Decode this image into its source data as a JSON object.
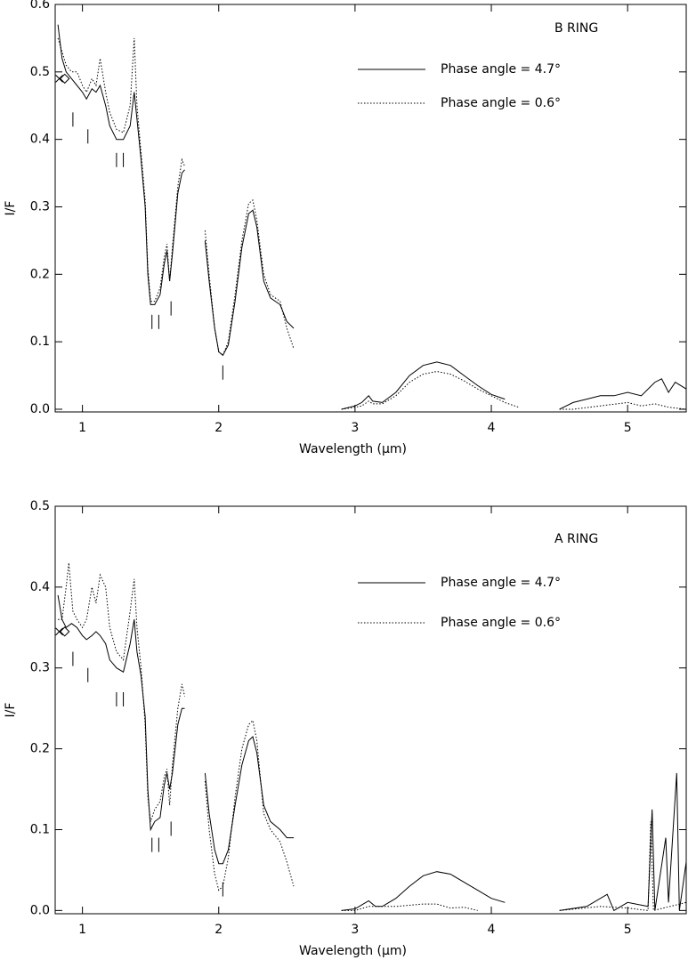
{
  "chart_data": [
    {
      "type": "line",
      "annotation": "B RING",
      "xlabel": "Wavelength (μm)",
      "ylabel": "I/F",
      "xlim": [
        0.8,
        5.43
      ],
      "ylim": [
        -0.004,
        0.6
      ],
      "xticks": [
        1,
        2,
        3,
        4,
        5
      ],
      "yticks": [
        {
          "value": 0,
          "label": "0.0"
        },
        0.1,
        0.2,
        0.3,
        0.4,
        0.5,
        0.6
      ],
      "series": [
        {
          "name": "Phase angle =  4.7°",
          "color": "#000000",
          "style": "solid",
          "x": [
            0.82,
            0.85,
            0.88,
            0.92,
            0.96,
            1.0,
            1.03,
            1.07,
            1.1,
            1.13,
            1.17,
            1.2,
            1.25,
            1.3,
            1.35,
            1.38,
            1.4,
            1.43,
            1.46,
            1.48,
            1.5,
            1.53,
            1.57,
            1.6,
            1.62,
            1.64,
            1.66,
            1.7,
            1.73,
            1.75,
            null,
            1.9,
            1.93,
            1.97,
            2.0,
            2.03,
            2.07,
            2.12,
            2.17,
            2.22,
            2.25,
            2.28,
            2.33,
            2.38,
            2.45,
            2.5,
            2.55,
            null,
            2.9,
            3.0,
            3.05,
            3.1,
            3.13,
            3.2,
            3.3,
            3.4,
            3.5,
            3.6,
            3.7,
            3.8,
            3.9,
            4.0,
            4.1,
            null,
            4.5,
            4.6,
            4.7,
            4.8,
            4.9,
            5.0,
            5.1,
            5.2,
            5.25,
            5.3,
            5.35,
            5.43
          ],
          "values": [
            0.57,
            0.52,
            0.5,
            0.49,
            0.48,
            0.47,
            0.46,
            0.475,
            0.47,
            0.48,
            0.45,
            0.42,
            0.4,
            0.4,
            0.42,
            0.47,
            0.43,
            0.37,
            0.3,
            0.2,
            0.155,
            0.155,
            0.17,
            0.215,
            0.235,
            0.19,
            0.23,
            0.32,
            0.35,
            0.355,
            null,
            0.25,
            0.19,
            0.12,
            0.085,
            0.08,
            0.095,
            0.16,
            0.24,
            0.29,
            0.295,
            0.27,
            0.19,
            0.165,
            0.155,
            0.13,
            0.12,
            null,
            0.0,
            0.005,
            0.01,
            0.02,
            0.012,
            0.01,
            0.025,
            0.05,
            0.065,
            0.07,
            0.065,
            0.05,
            0.035,
            0.022,
            0.015,
            null,
            0.0,
            0.01,
            0.015,
            0.02,
            0.02,
            0.025,
            0.02,
            0.04,
            0.045,
            0.025,
            0.04,
            0.03
          ]
        },
        {
          "name": "Phase angle =  0.6°",
          "color": "#000000",
          "style": "dotted",
          "x": [
            0.82,
            0.85,
            0.88,
            0.92,
            0.96,
            1.0,
            1.03,
            1.07,
            1.1,
            1.13,
            1.17,
            1.2,
            1.25,
            1.3,
            1.35,
            1.38,
            1.4,
            1.43,
            1.46,
            1.48,
            1.5,
            1.53,
            1.57,
            1.6,
            1.62,
            1.64,
            1.66,
            1.7,
            1.73,
            1.75,
            null,
            1.9,
            1.93,
            1.97,
            2.0,
            2.03,
            2.07,
            2.12,
            2.17,
            2.22,
            2.25,
            2.28,
            2.33,
            2.38,
            2.45,
            2.5,
            2.55,
            null,
            2.9,
            3.0,
            3.05,
            3.1,
            3.13,
            3.2,
            3.3,
            3.4,
            3.5,
            3.6,
            3.7,
            3.8,
            3.9,
            4.0,
            4.1,
            4.2,
            null,
            4.5,
            4.6,
            4.8,
            5.0,
            5.1,
            5.2,
            5.3,
            5.43
          ],
          "values": [
            0.55,
            0.53,
            0.51,
            0.5,
            0.5,
            0.48,
            0.47,
            0.49,
            0.48,
            0.52,
            0.47,
            0.44,
            0.415,
            0.41,
            0.45,
            0.55,
            0.45,
            0.38,
            0.31,
            0.21,
            0.16,
            0.16,
            0.18,
            0.225,
            0.245,
            0.19,
            0.24,
            0.33,
            0.37,
            0.36,
            null,
            0.265,
            0.2,
            0.12,
            0.085,
            0.08,
            0.1,
            0.17,
            0.25,
            0.305,
            0.31,
            0.28,
            0.2,
            0.17,
            0.16,
            0.12,
            0.09,
            null,
            0.0,
            0.003,
            0.005,
            0.012,
            0.008,
            0.008,
            0.02,
            0.04,
            0.052,
            0.056,
            0.052,
            0.042,
            0.03,
            0.02,
            0.01,
            0.003,
            null,
            0.0,
            0.0,
            0.005,
            0.01,
            0.005,
            0.008,
            0.003,
            0.0
          ]
        }
      ],
      "band_marks": [
        {
          "x": 0.93,
          "y": 0.44
        },
        {
          "x": 1.04,
          "y": 0.415
        },
        {
          "x": 1.25,
          "y": 0.38
        },
        {
          "x": 1.3,
          "y": 0.38
        },
        {
          "x": 1.51,
          "y": 0.14
        },
        {
          "x": 1.56,
          "y": 0.14
        },
        {
          "x": 1.65,
          "y": 0.16
        },
        {
          "x": 2.03,
          "y": 0.065
        }
      ],
      "reference_points": [
        {
          "x": 0.83,
          "y": 0.49,
          "marker": "cross"
        },
        {
          "x": 0.87,
          "y": 0.49,
          "marker": "diamond"
        }
      ]
    },
    {
      "type": "line",
      "annotation": "A RING",
      "xlabel": "Wavelength (μm)",
      "ylabel": "I/F",
      "xlim": [
        0.8,
        5.43
      ],
      "ylim": [
        -0.004,
        0.5
      ],
      "xticks": [
        1,
        2,
        3,
        4,
        5
      ],
      "yticks": [
        {
          "value": 0,
          "label": "0.0"
        },
        0.1,
        0.2,
        0.3,
        0.4,
        0.5
      ],
      "series": [
        {
          "name": "Phase angle =  4.7°",
          "color": "#000000",
          "style": "solid",
          "x": [
            0.82,
            0.85,
            0.88,
            0.92,
            0.96,
            1.0,
            1.03,
            1.07,
            1.1,
            1.13,
            1.17,
            1.2,
            1.25,
            1.3,
            1.35,
            1.38,
            1.4,
            1.43,
            1.46,
            1.48,
            1.5,
            1.53,
            1.57,
            1.6,
            1.62,
            1.64,
            1.66,
            1.7,
            1.73,
            1.75,
            null,
            1.9,
            1.93,
            1.97,
            2.0,
            2.03,
            2.07,
            2.12,
            2.17,
            2.22,
            2.25,
            2.28,
            2.33,
            2.38,
            2.45,
            2.5,
            2.55,
            null,
            2.9,
            3.0,
            3.1,
            3.15,
            3.2,
            3.3,
            3.4,
            3.5,
            3.6,
            3.7,
            3.8,
            3.9,
            4.0,
            4.1,
            null,
            4.5,
            4.7,
            4.85,
            4.9,
            5.0,
            5.15,
            5.18,
            5.2,
            5.28,
            5.3,
            5.36,
            5.38,
            5.43
          ],
          "values": [
            0.39,
            0.36,
            0.35,
            0.355,
            0.35,
            0.34,
            0.335,
            0.34,
            0.345,
            0.34,
            0.33,
            0.31,
            0.3,
            0.295,
            0.33,
            0.36,
            0.32,
            0.29,
            0.24,
            0.15,
            0.1,
            0.11,
            0.115,
            0.155,
            0.17,
            0.15,
            0.17,
            0.23,
            0.25,
            0.25,
            null,
            0.17,
            0.12,
            0.075,
            0.058,
            0.058,
            0.075,
            0.13,
            0.18,
            0.21,
            0.215,
            0.195,
            0.13,
            0.11,
            0.1,
            0.09,
            0.09,
            null,
            0.0,
            0.002,
            0.012,
            0.005,
            0.005,
            0.015,
            0.03,
            0.043,
            0.048,
            0.045,
            0.035,
            0.025,
            0.015,
            0.01,
            null,
            0.0,
            0.005,
            0.02,
            0.0,
            0.01,
            0.005,
            0.125,
            0.0,
            0.09,
            0.01,
            0.17,
            0.0,
            0.06
          ]
        },
        {
          "name": "Phase angle =  0.6°",
          "color": "#000000",
          "style": "dotted",
          "x": [
            0.82,
            0.85,
            0.88,
            0.9,
            0.93,
            0.96,
            1.0,
            1.03,
            1.07,
            1.1,
            1.13,
            1.17,
            1.2,
            1.25,
            1.3,
            1.35,
            1.38,
            1.4,
            1.43,
            1.46,
            1.48,
            1.5,
            1.53,
            1.57,
            1.6,
            1.62,
            1.64,
            1.66,
            1.7,
            1.73,
            1.75,
            null,
            1.9,
            1.93,
            1.97,
            2.0,
            2.03,
            2.07,
            2.12,
            2.17,
            2.22,
            2.25,
            2.28,
            2.33,
            2.38,
            2.45,
            2.5,
            2.55,
            null,
            2.9,
            3.0,
            3.1,
            3.3,
            3.5,
            3.6,
            3.7,
            3.8,
            3.9,
            null,
            4.5,
            4.8,
            5.0,
            5.15,
            5.17,
            5.19,
            5.43
          ],
          "values": [
            0.36,
            0.36,
            0.4,
            0.43,
            0.37,
            0.36,
            0.35,
            0.36,
            0.4,
            0.38,
            0.415,
            0.4,
            0.35,
            0.32,
            0.31,
            0.37,
            0.41,
            0.35,
            0.3,
            0.23,
            0.14,
            0.11,
            0.125,
            0.135,
            0.165,
            0.175,
            0.13,
            0.18,
            0.25,
            0.28,
            0.265,
            null,
            0.16,
            0.1,
            0.045,
            0.025,
            0.03,
            0.065,
            0.14,
            0.2,
            0.23,
            0.235,
            0.21,
            0.12,
            0.1,
            0.085,
            0.06,
            0.03,
            null,
            0.0,
            0.0,
            0.005,
            0.005,
            0.008,
            0.008,
            0.003,
            0.004,
            0.0,
            null,
            0.0,
            0.005,
            0.003,
            0.0,
            0.11,
            0.0,
            0.01
          ]
        }
      ],
      "band_marks": [
        {
          "x": 0.93,
          "y": 0.32
        },
        {
          "x": 1.04,
          "y": 0.3
        },
        {
          "x": 1.25,
          "y": 0.27
        },
        {
          "x": 1.3,
          "y": 0.27
        },
        {
          "x": 1.51,
          "y": 0.09
        },
        {
          "x": 1.56,
          "y": 0.09
        },
        {
          "x": 1.65,
          "y": 0.11
        },
        {
          "x": 2.03,
          "y": 0.035
        }
      ],
      "reference_points": [
        {
          "x": 0.83,
          "y": 0.345,
          "marker": "cross"
        },
        {
          "x": 0.87,
          "y": 0.345,
          "marker": "diamond"
        }
      ]
    }
  ]
}
